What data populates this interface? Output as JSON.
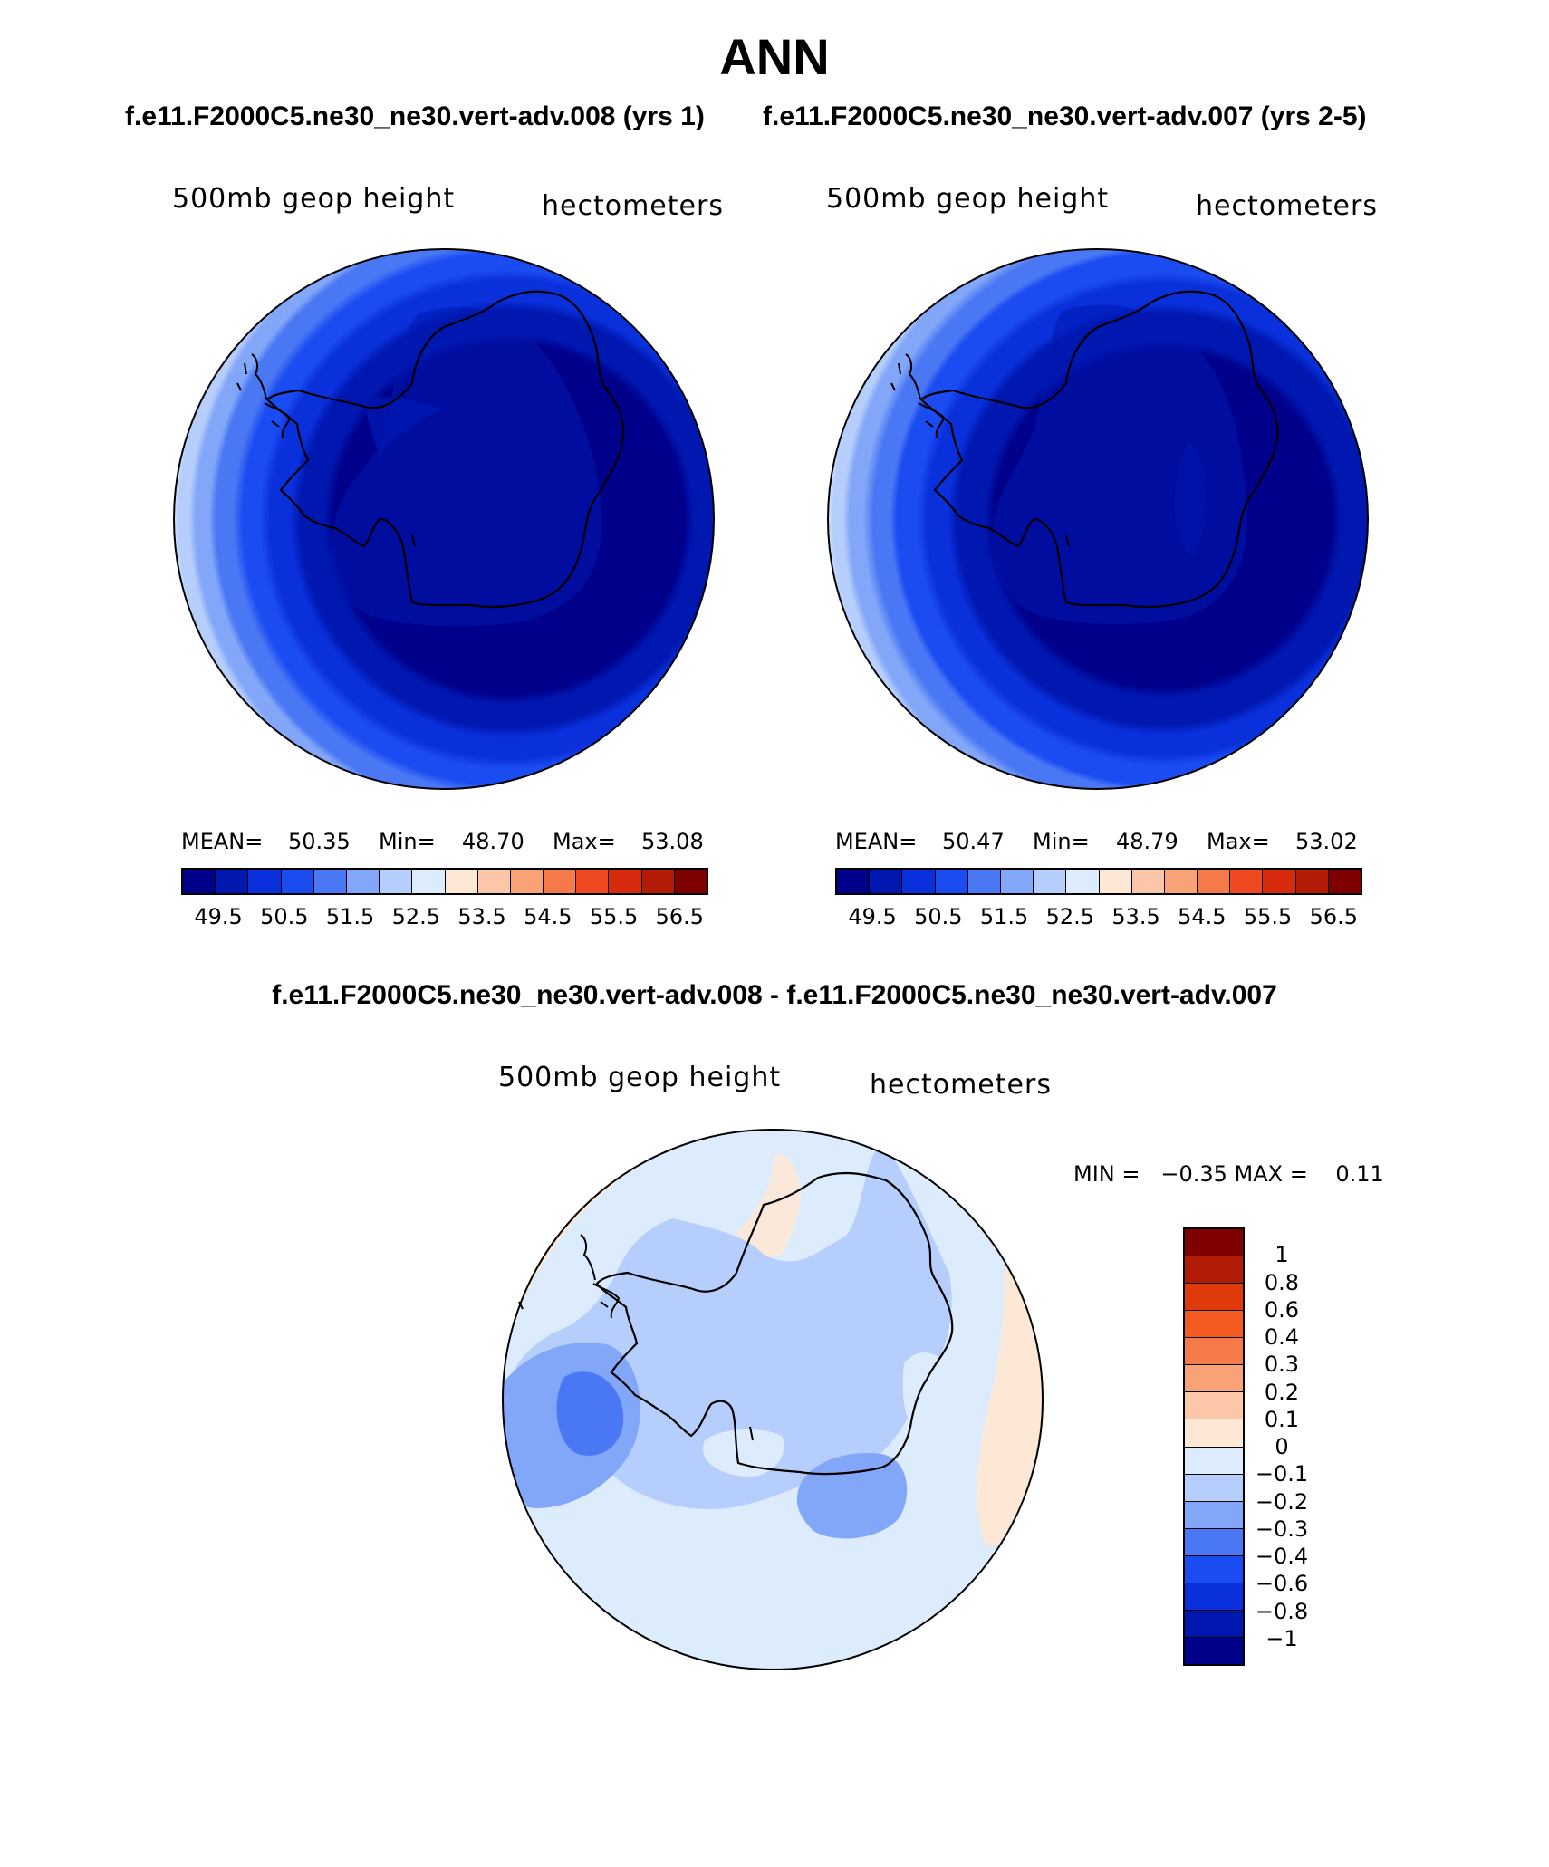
{
  "figure": {
    "title": "ANN",
    "subtitle_left": "f.e11.F2000C5.ne30_ne30.vert-adv.008 (yrs 1)",
    "subtitle_right": "f.e11.F2000C5.ne30_ne30.vert-adv.007 (yrs 2-5)",
    "diff_title": "f.e11.F2000C5.ne30_ne30.vert-adv.008 - f.e11.F2000C5.ne30_ne30.vert-adv.007"
  },
  "panels": [
    {
      "variable": "500mb geop height",
      "units": "hectometers",
      "mean_label": "MEAN=",
      "mean": "50.35",
      "min_label": "Min=",
      "min": "48.70",
      "max_label": "Max=",
      "max": "53.08"
    },
    {
      "variable": "500mb geop height",
      "units": "hectometers",
      "mean_label": "MEAN=",
      "mean": "50.47",
      "min_label": "Min=",
      "min": "48.79",
      "max_label": "Max=",
      "max": "53.02"
    },
    {
      "variable": "500mb geop height",
      "units": "hectometers",
      "minmax": "MIN =   −0.35 MAX =    0.11"
    }
  ],
  "colorbar_abs": {
    "colors": [
      "#00008b",
      "#0018b0",
      "#0a30dc",
      "#1a4cf2",
      "#4a78f4",
      "#82a6f8",
      "#b6cefc",
      "#dcecfd",
      "#fde8d6",
      "#fcc6a8",
      "#f8a276",
      "#f47a4a",
      "#f04820",
      "#d82a0c",
      "#b21c06",
      "#7e0000"
    ],
    "ticks": [
      "49.5",
      "50.5",
      "51.5",
      "52.5",
      "53.5",
      "54.5",
      "55.5",
      "56.5"
    ]
  },
  "colorbar_diff": {
    "colors": [
      "#7e0000",
      "#b21c06",
      "#e03a0c",
      "#f25a20",
      "#f47a4a",
      "#f8a276",
      "#fcc6a8",
      "#fde8d6",
      "#dcecfd",
      "#b6cefc",
      "#82a6f8",
      "#4a78f4",
      "#1a4cf2",
      "#0a30dc",
      "#0018b0",
      "#00008b"
    ],
    "ticks": [
      "1",
      "0.8",
      "0.6",
      "0.4",
      "0.3",
      "0.2",
      "0.1",
      "0",
      "−0.1",
      "−0.2",
      "−0.3",
      "−0.4",
      "−0.6",
      "−0.8",
      "−1"
    ]
  }
}
